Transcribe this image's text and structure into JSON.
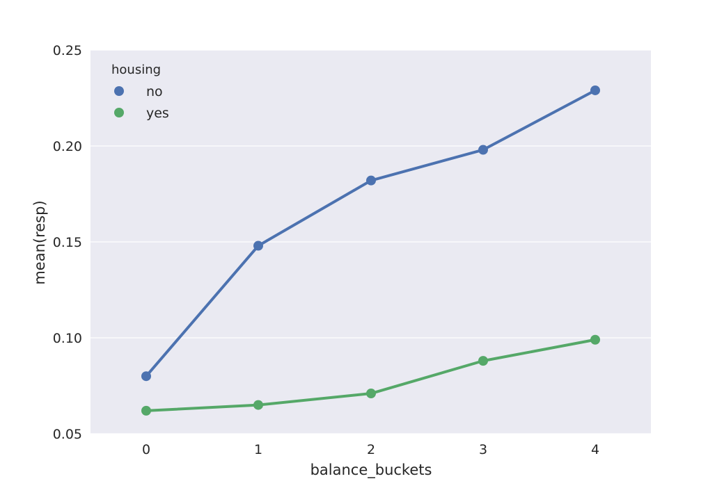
{
  "chart_data": {
    "type": "line",
    "xlabel": "balance_buckets",
    "ylabel": "mean(resp)",
    "categories": [
      "0",
      "1",
      "2",
      "3",
      "4"
    ],
    "ylim": [
      0.05,
      0.25
    ],
    "yticks": [
      0.05,
      0.1,
      0.15,
      0.2,
      0.25
    ],
    "ytick_labels": [
      "0.05",
      "0.10",
      "0.15",
      "0.20",
      "0.25"
    ],
    "grid": true,
    "background": "#eaeaf2",
    "legend": {
      "title": "housing",
      "placement": "top-left"
    },
    "series": [
      {
        "name": "no",
        "color": "#4c72b0",
        "values": [
          0.08,
          0.148,
          0.182,
          0.198,
          0.229
        ]
      },
      {
        "name": "yes",
        "color": "#55a868",
        "values": [
          0.062,
          0.065,
          0.071,
          0.088,
          0.099
        ]
      }
    ]
  }
}
